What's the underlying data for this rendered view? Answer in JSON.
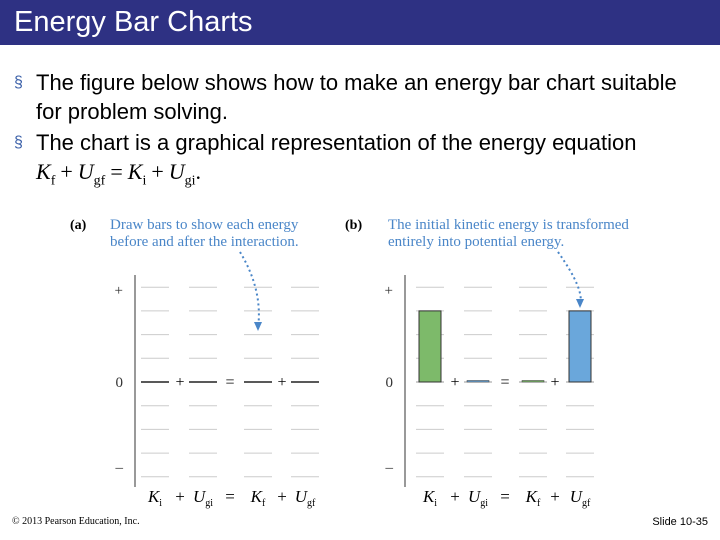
{
  "header": {
    "title": "Energy Bar Charts"
  },
  "bullets": [
    {
      "text": "The figure below shows how to make an energy bar chart suitable for problem solving."
    },
    {
      "text": "The chart is a graphical representation of the energy equation",
      "equation": [
        {
          "text": "K",
          "sub": "f"
        },
        {
          "text": "+"
        },
        {
          "text": "U",
          "sub": "gf"
        },
        {
          "text": "="
        },
        {
          "text": "K",
          "sub": "i"
        },
        {
          "text": "+"
        },
        {
          "text": "U",
          "sub": "gi"
        },
        {
          "text": "."
        }
      ]
    }
  ],
  "figure": {
    "axis_labels": [
      "+",
      "0",
      "–"
    ],
    "terms": [
      {
        "text": "K",
        "sub": "i"
      },
      {
        "text": "+"
      },
      {
        "text": "U",
        "sub": "gi"
      },
      {
        "text": "="
      },
      {
        "text": "K",
        "sub": "f"
      },
      {
        "text": "+"
      },
      {
        "text": "U",
        "sub": "gf"
      }
    ],
    "panels": [
      {
        "label": "(a)",
        "caption": [
          "Draw bars to show each energy",
          "before and after the interaction."
        ]
      },
      {
        "label": "(b)",
        "caption": [
          "The initial kinetic energy is transformed",
          "entirely into potential energy."
        ],
        "values": [
          3,
          0,
          0,
          3
        ],
        "colors": [
          "#7dba6a",
          "#6aa7db",
          "#7dba6a",
          "#6aa7db"
        ]
      }
    ]
  },
  "footer": {
    "copyright": "© 2013 Pearson Education, Inc.",
    "slide": "Slide 10-35"
  }
}
